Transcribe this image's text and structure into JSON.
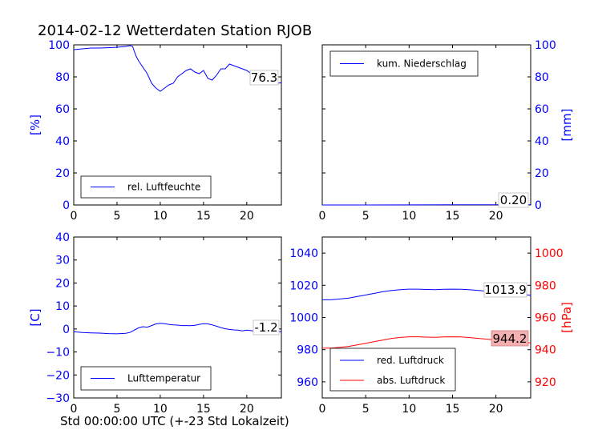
{
  "page_title": "2014-02-12 Wetterdaten Station RJOB",
  "xlabel": "Std 00:00:00 UTC (+-23 Std Lokalzeit)",
  "colors": {
    "blue": "#0000ff",
    "red": "#ff0000",
    "valbox_red_fill": "#f4b0b0"
  },
  "chart_data": [
    {
      "id": "humidity",
      "type": "line",
      "xlim": [
        0,
        24
      ],
      "ylim": [
        0,
        100
      ],
      "xticks": [
        0,
        5,
        10,
        15,
        20
      ],
      "yticks": [
        0,
        20,
        40,
        60,
        80,
        100
      ],
      "ylabel": "[%]",
      "ylabel_side": "left",
      "legend": "bottom-left",
      "current_value": "76.3",
      "series": [
        {
          "name": "rel. Luftfeuchte",
          "color": "#0000ff",
          "x": [
            0,
            1,
            2,
            3,
            4,
            5,
            6,
            6.5,
            6.8,
            7,
            7.2,
            7.5,
            8,
            8.5,
            9,
            9.5,
            10,
            10.5,
            11,
            11.5,
            12,
            12.5,
            13,
            13.5,
            14,
            14.5,
            15,
            15.5,
            16,
            16.5,
            17,
            17.5,
            18,
            18.5,
            19,
            19.5,
            20,
            20.5,
            21,
            21.5,
            22,
            22.5,
            23,
            23.5,
            24
          ],
          "y": [
            97,
            97.5,
            98,
            98,
            98.2,
            98.5,
            99,
            99.5,
            99,
            96,
            93,
            90,
            86,
            82,
            76,
            73,
            71,
            73,
            75,
            76,
            80,
            82,
            84,
            85,
            83,
            82,
            84,
            79,
            78,
            81,
            85,
            85,
            88,
            87,
            86,
            85,
            84,
            82,
            80,
            78,
            79,
            77,
            76,
            76,
            76.3
          ]
        }
      ]
    },
    {
      "id": "precipitation",
      "type": "line",
      "xlim": [
        0,
        24
      ],
      "ylim": [
        0,
        100
      ],
      "xticks": [
        0,
        5,
        10,
        15,
        20
      ],
      "yticks": [
        0,
        20,
        40,
        60,
        80,
        100
      ],
      "ylabel": "[mm]",
      "ylabel_side": "right",
      "legend": "top-left",
      "current_value": "0.20",
      "series": [
        {
          "name": "kum. Niederschlag",
          "color": "#0000ff",
          "x": [
            0,
            5,
            10,
            15,
            20,
            24
          ],
          "y": [
            0,
            0,
            0.05,
            0.1,
            0.15,
            0.2
          ]
        }
      ]
    },
    {
      "id": "temperature",
      "type": "line",
      "xlim": [
        0,
        24
      ],
      "ylim": [
        -30,
        40
      ],
      "xticks": [
        0,
        5,
        10,
        15,
        20
      ],
      "yticks": [
        -30,
        -20,
        -10,
        0,
        10,
        20,
        30,
        40
      ],
      "ylabel": "[C]",
      "ylabel_side": "left",
      "legend": "bottom-left",
      "current_value": "-1.2",
      "series": [
        {
          "name": "Lufttemperatur",
          "color": "#0000ff",
          "x": [
            0,
            1,
            2,
            3,
            4,
            5,
            6,
            6.5,
            7,
            7.5,
            8,
            8.5,
            9,
            9.5,
            10,
            10.5,
            11,
            11.5,
            12,
            12.5,
            13,
            13.5,
            14,
            14.5,
            15,
            15.5,
            16,
            16.5,
            17,
            17.5,
            18,
            18.5,
            19,
            19.5,
            20,
            20.5,
            21,
            22,
            23,
            24
          ],
          "y": [
            -1.2,
            -1.5,
            -1.7,
            -1.8,
            -2.0,
            -2.1,
            -1.9,
            -1.5,
            -0.5,
            0.5,
            1.0,
            0.8,
            1.5,
            2.2,
            2.5,
            2.3,
            2.0,
            1.8,
            1.7,
            1.5,
            1.5,
            1.4,
            1.6,
            2.0,
            2.3,
            2.2,
            1.8,
            1.2,
            0.6,
            0.1,
            -0.2,
            -0.4,
            -0.5,
            -0.8,
            -0.5,
            -0.7,
            -1.0,
            -0.9,
            -1.1,
            -1.2
          ]
        }
      ]
    },
    {
      "id": "pressure",
      "type": "line",
      "xlim": [
        0,
        24
      ],
      "ylim": [
        950,
        1050
      ],
      "ylim_right": [
        910,
        1010
      ],
      "xticks": [
        0,
        5,
        10,
        15,
        20
      ],
      "yticks": [
        960,
        980,
        1000,
        1020,
        1040
      ],
      "yticks_right": [
        920,
        940,
        960,
        980,
        1000
      ],
      "ylabel": "[hPa]",
      "ylabel_side": "right",
      "legend": "bottom-left",
      "current_value": "1013.9",
      "current_value_2": "944.2",
      "series": [
        {
          "name": "red. Luftdruck",
          "color": "#0000ff",
          "axis": "left",
          "x": [
            0,
            1,
            2,
            3,
            4,
            5,
            6,
            7,
            8,
            9,
            10,
            11,
            12,
            13,
            14,
            15,
            16,
            17,
            18,
            19,
            20,
            21,
            22,
            23,
            24
          ],
          "y": [
            1011.0,
            1011.0,
            1011.5,
            1012.0,
            1013.0,
            1014.0,
            1015.0,
            1016.0,
            1016.8,
            1017.3,
            1017.6,
            1017.6,
            1017.4,
            1017.3,
            1017.5,
            1017.6,
            1017.5,
            1017.2,
            1016.8,
            1016.3,
            1015.8,
            1015.2,
            1014.7,
            1014.3,
            1013.9
          ]
        },
        {
          "name": "abs. Luftdruck",
          "color": "#ff0000",
          "axis": "right",
          "x": [
            0,
            1,
            2,
            3,
            4,
            5,
            6,
            7,
            8,
            9,
            10,
            11,
            12,
            13,
            14,
            15,
            16,
            17,
            18,
            19,
            20,
            21,
            22,
            23,
            24
          ],
          "y": [
            941.0,
            941.0,
            941.5,
            942.0,
            943.0,
            944.0,
            945.0,
            946.0,
            947.0,
            947.6,
            948.0,
            948.0,
            947.8,
            947.7,
            947.9,
            948.0,
            947.9,
            947.5,
            947.0,
            946.5,
            946.0,
            945.4,
            944.9,
            944.5,
            944.2
          ]
        }
      ]
    }
  ]
}
